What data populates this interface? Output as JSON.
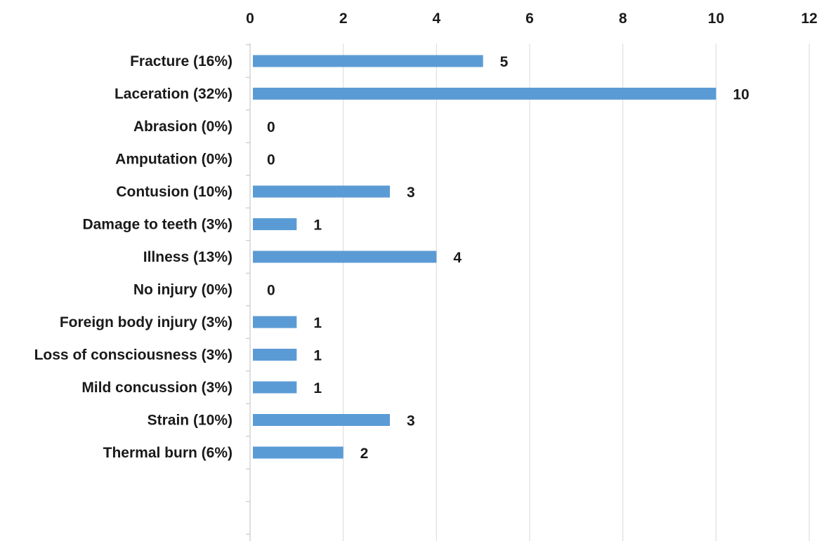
{
  "chart_data": {
    "type": "bar",
    "orientation": "horizontal",
    "categories": [
      "Fracture (16%)",
      "Laceration (32%)",
      "Abrasion (0%)",
      "Amputation (0%)",
      "Contusion (10%)",
      "Damage to teeth (3%)",
      "Illness (13%)",
      "No injury (0%)",
      "Foreign body injury (3%)",
      "Loss of consciousness (3%)",
      "Mild concussion (3%)",
      "Strain (10%)",
      "Thermal burn (6%)"
    ],
    "values": [
      5,
      10,
      0,
      0,
      3,
      1,
      4,
      0,
      1,
      1,
      1,
      3,
      2
    ],
    "empty_slots_after": 2,
    "xlim": [
      0,
      12
    ],
    "xticks": [
      "0",
      "2",
      "4",
      "6",
      "8",
      "10",
      "12"
    ],
    "x_axis_position": "top",
    "grid": "vertical",
    "data_labels": true,
    "bar_color": "#5b9bd5",
    "grid_color": "#d9d9d9"
  }
}
